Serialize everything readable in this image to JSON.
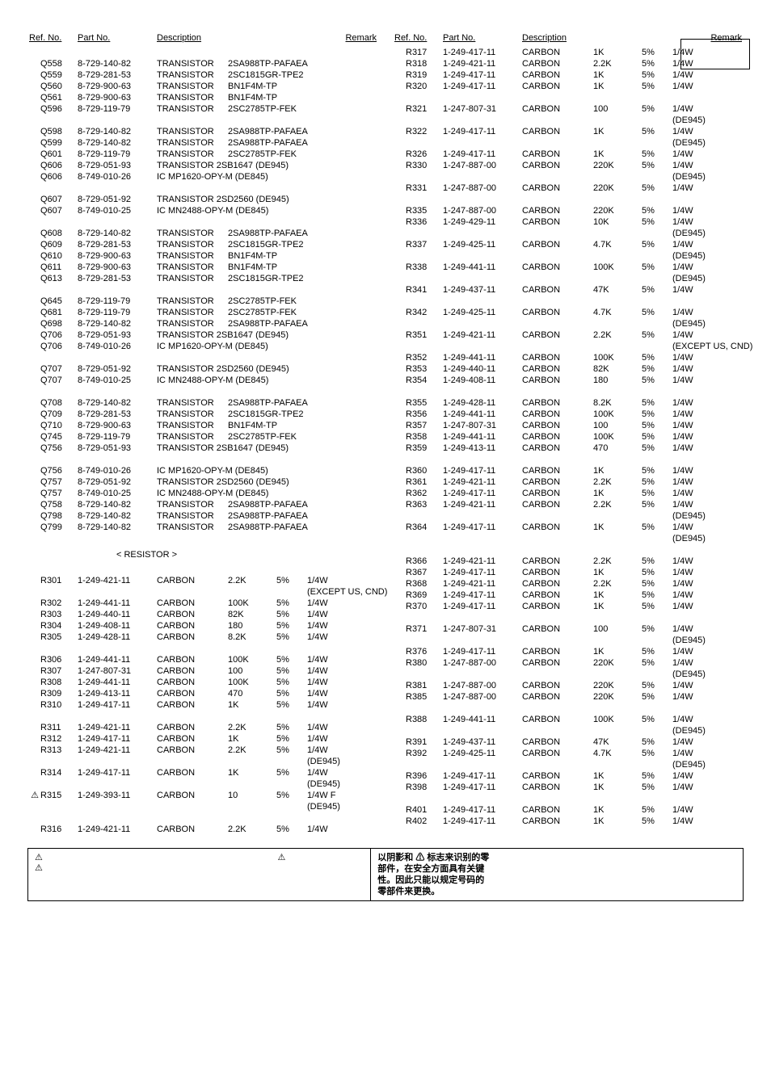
{
  "headers": {
    "ref": "Ref. No.",
    "part": "Part No.",
    "desc": "Description",
    "remark": "Remark"
  },
  "leftCol": [
    {
      "type": "head"
    },
    {
      "type": "spacer"
    },
    {
      "ref": "Q558",
      "part": "8-729-140-82",
      "desc": "TRANSISTOR",
      "d2": "2SA988TP-PAFAEA"
    },
    {
      "ref": "Q559",
      "part": "8-729-281-53",
      "desc": "TRANSISTOR",
      "d2": "2SC1815GR-TPE2"
    },
    {
      "ref": "Q560",
      "part": "8-729-900-63",
      "desc": "TRANSISTOR",
      "d2": "BN1F4M-TP"
    },
    {
      "ref": "Q561",
      "part": "8-729-900-63",
      "desc": "TRANSISTOR",
      "d2": "BN1F4M-TP"
    },
    {
      "ref": "Q596",
      "part": "8-729-119-79",
      "desc": "TRANSISTOR",
      "d2": "2SC2785TP-FEK"
    },
    {
      "type": "spacer"
    },
    {
      "ref": "Q598",
      "part": "8-729-140-82",
      "desc": "TRANSISTOR",
      "d2": "2SA988TP-PAFAEA"
    },
    {
      "ref": "Q599",
      "part": "8-729-140-82",
      "desc": "TRANSISTOR",
      "d2": "2SA988TP-PAFAEA"
    },
    {
      "ref": "Q601",
      "part": "8-729-119-79",
      "desc": "TRANSISTOR",
      "d2": "2SC2785TP-FEK"
    },
    {
      "ref": "Q606",
      "part": "8-729-051-93",
      "desc": "TRANSISTOR 2SB1647 (DE945)"
    },
    {
      "ref": "Q606",
      "part": "8-749-010-26",
      "desc": "IC MP1620-OPY-M (DE845)"
    },
    {
      "type": "spacer"
    },
    {
      "ref": "Q607",
      "part": "8-729-051-92",
      "desc": "TRANSISTOR 2SD2560 (DE945)"
    },
    {
      "ref": "Q607",
      "part": "8-749-010-25",
      "desc": "IC MN2488-OPY-M (DE845)"
    },
    {
      "type": "spacer"
    },
    {
      "ref": "Q608",
      "part": "8-729-140-82",
      "desc": "TRANSISTOR",
      "d2": "2SA988TP-PAFAEA"
    },
    {
      "ref": "Q609",
      "part": "8-729-281-53",
      "desc": "TRANSISTOR",
      "d2": "2SC1815GR-TPE2"
    },
    {
      "ref": "Q610",
      "part": "8-729-900-63",
      "desc": "TRANSISTOR",
      "d2": "BN1F4M-TP"
    },
    {
      "ref": "Q611",
      "part": "8-729-900-63",
      "desc": "TRANSISTOR",
      "d2": "BN1F4M-TP"
    },
    {
      "ref": "Q613",
      "part": "8-729-281-53",
      "desc": "TRANSISTOR",
      "d2": "2SC1815GR-TPE2"
    },
    {
      "type": "spacer"
    },
    {
      "ref": "Q645",
      "part": "8-729-119-79",
      "desc": "TRANSISTOR",
      "d2": "2SC2785TP-FEK"
    },
    {
      "ref": "Q681",
      "part": "8-729-119-79",
      "desc": "TRANSISTOR",
      "d2": "2SC2785TP-FEK"
    },
    {
      "ref": "Q698",
      "part": "8-729-140-82",
      "desc": "TRANSISTOR",
      "d2": "2SA988TP-PAFAEA"
    },
    {
      "ref": "Q706",
      "part": "8-729-051-93",
      "desc": "TRANSISTOR 2SB1647 (DE945)"
    },
    {
      "ref": "Q706",
      "part": "8-749-010-26",
      "desc": "IC MP1620-OPY-M (DE845)"
    },
    {
      "type": "spacer"
    },
    {
      "ref": "Q707",
      "part": "8-729-051-92",
      "desc": "TRANSISTOR 2SD2560 (DE945)"
    },
    {
      "ref": "Q707",
      "part": "8-749-010-25",
      "desc": "IC MN2488-OPY-M (DE845)"
    },
    {
      "type": "spacer"
    },
    {
      "ref": "Q708",
      "part": "8-729-140-82",
      "desc": "TRANSISTOR",
      "d2": "2SA988TP-PAFAEA"
    },
    {
      "ref": "Q709",
      "part": "8-729-281-53",
      "desc": "TRANSISTOR",
      "d2": "2SC1815GR-TPE2"
    },
    {
      "ref": "Q710",
      "part": "8-729-900-63",
      "desc": "TRANSISTOR",
      "d2": "BN1F4M-TP"
    },
    {
      "ref": "Q745",
      "part": "8-729-119-79",
      "desc": "TRANSISTOR",
      "d2": "2SC2785TP-FEK"
    },
    {
      "ref": "Q756",
      "part": "8-729-051-93",
      "desc": "TRANSISTOR 2SB1647 (DE945)"
    },
    {
      "type": "spacer"
    },
    {
      "ref": "Q756",
      "part": "8-749-010-26",
      "desc": "IC MP1620-OPY-M (DE845)"
    },
    {
      "ref": "Q757",
      "part": "8-729-051-92",
      "desc": "TRANSISTOR 2SD2560 (DE945)"
    },
    {
      "ref": "Q757",
      "part": "8-749-010-25",
      "desc": "IC MN2488-OPY-M (DE845)"
    },
    {
      "ref": "Q758",
      "part": "8-729-140-82",
      "desc": "TRANSISTOR",
      "d2": "2SA988TP-PAFAEA"
    },
    {
      "ref": "Q798",
      "part": "8-729-140-82",
      "desc": "TRANSISTOR",
      "d2": "2SA988TP-PAFAEA"
    },
    {
      "ref": "Q799",
      "part": "8-729-140-82",
      "desc": "TRANSISTOR",
      "d2": "2SA988TP-PAFAEA"
    },
    {
      "type": "spacer"
    },
    {
      "type": "section",
      "label": "< RESISTOR >"
    },
    {
      "type": "spacer"
    },
    {
      "ref": "R301",
      "part": "1-249-421-11",
      "desc": "CARBON",
      "d2": "2.2K",
      "d3": "5%",
      "rem": "1/4W"
    },
    {
      "rem": "(EXCEPT US, CND)"
    },
    {
      "ref": "R302",
      "part": "1-249-441-11",
      "desc": "CARBON",
      "d2": "100K",
      "d3": "5%",
      "rem": "1/4W"
    },
    {
      "ref": "R303",
      "part": "1-249-440-11",
      "desc": "CARBON",
      "d2": "82K",
      "d3": "5%",
      "rem": "1/4W"
    },
    {
      "ref": "R304",
      "part": "1-249-408-11",
      "desc": "CARBON",
      "d2": "180",
      "d3": "5%",
      "rem": "1/4W"
    },
    {
      "ref": "R305",
      "part": "1-249-428-11",
      "desc": "CARBON",
      "d2": "8.2K",
      "d3": "5%",
      "rem": "1/4W"
    },
    {
      "type": "spacer"
    },
    {
      "ref": "R306",
      "part": "1-249-441-11",
      "desc": "CARBON",
      "d2": "100K",
      "d3": "5%",
      "rem": "1/4W"
    },
    {
      "ref": "R307",
      "part": "1-247-807-31",
      "desc": "CARBON",
      "d2": "100",
      "d3": "5%",
      "rem": "1/4W"
    },
    {
      "ref": "R308",
      "part": "1-249-441-11",
      "desc": "CARBON",
      "d2": "100K",
      "d3": "5%",
      "rem": "1/4W"
    },
    {
      "ref": "R309",
      "part": "1-249-413-11",
      "desc": "CARBON",
      "d2": "470",
      "d3": "5%",
      "rem": "1/4W"
    },
    {
      "ref": "R310",
      "part": "1-249-417-11",
      "desc": "CARBON",
      "d2": "1K",
      "d3": "5%",
      "rem": "1/4W"
    },
    {
      "type": "spacer"
    },
    {
      "ref": "R311",
      "part": "1-249-421-11",
      "desc": "CARBON",
      "d2": "2.2K",
      "d3": "5%",
      "rem": "1/4W"
    },
    {
      "ref": "R312",
      "part": "1-249-417-11",
      "desc": "CARBON",
      "d2": "1K",
      "d3": "5%",
      "rem": "1/4W"
    },
    {
      "ref": "R313",
      "part": "1-249-421-11",
      "desc": "CARBON",
      "d2": "2.2K",
      "d3": "5%",
      "rem": "1/4W"
    },
    {
      "rem": "(DE945)"
    },
    {
      "ref": "R314",
      "part": "1-249-417-11",
      "desc": "CARBON",
      "d2": "1K",
      "d3": "5%",
      "rem": "1/4W"
    },
    {
      "rem": "(DE945)"
    },
    {
      "ref": "R315",
      "mark": "warn",
      "part": "1-249-393-11",
      "desc": "CARBON",
      "d2": "10",
      "d3": "5%",
      "rem": "1/4W  F"
    },
    {
      "rem": "(DE945)"
    },
    {
      "type": "spacer"
    },
    {
      "ref": "R316",
      "part": "1-249-421-11",
      "desc": "CARBON",
      "d2": "2.2K",
      "d3": "5%",
      "rem": "1/4W"
    }
  ],
  "rightCol": [
    {
      "type": "head"
    },
    {
      "ref": "R317",
      "part": "1-249-417-11",
      "desc": "CARBON",
      "d2": "1K",
      "d3": "5%",
      "rem": "1/4W"
    },
    {
      "ref": "R318",
      "part": "1-249-421-11",
      "desc": "CARBON",
      "d2": "2.2K",
      "d3": "5%",
      "rem": "1/4W"
    },
    {
      "ref": "R319",
      "part": "1-249-417-11",
      "desc": "CARBON",
      "d2": "1K",
      "d3": "5%",
      "rem": "1/4W"
    },
    {
      "ref": "R320",
      "part": "1-249-417-11",
      "desc": "CARBON",
      "d2": "1K",
      "d3": "5%",
      "rem": "1/4W"
    },
    {
      "type": "spacer"
    },
    {
      "ref": "R321",
      "part": "1-247-807-31",
      "desc": "CARBON",
      "d2": "100",
      "d3": "5%",
      "rem": "1/4W"
    },
    {
      "rem": "(DE945)"
    },
    {
      "ref": "R322",
      "part": "1-249-417-11",
      "desc": "CARBON",
      "d2": "1K",
      "d3": "5%",
      "rem": "1/4W"
    },
    {
      "rem": "(DE945)"
    },
    {
      "ref": "R326",
      "part": "1-249-417-11",
      "desc": "CARBON",
      "d2": "1K",
      "d3": "5%",
      "rem": "1/4W"
    },
    {
      "ref": "R330",
      "part": "1-247-887-00",
      "desc": "CARBON",
      "d2": "220K",
      "d3": "5%",
      "rem": "1/4W"
    },
    {
      "rem": "(DE945)"
    },
    {
      "ref": "R331",
      "part": "1-247-887-00",
      "desc": "CARBON",
      "d2": "220K",
      "d3": "5%",
      "rem": "1/4W"
    },
    {
      "type": "spacer"
    },
    {
      "ref": "R335",
      "part": "1-247-887-00",
      "desc": "CARBON",
      "d2": "220K",
      "d3": "5%",
      "rem": "1/4W"
    },
    {
      "ref": "R336",
      "part": "1-249-429-11",
      "desc": "CARBON",
      "d2": "10K",
      "d3": "5%",
      "rem": "1/4W"
    },
    {
      "rem": "(DE945)"
    },
    {
      "ref": "R337",
      "part": "1-249-425-11",
      "desc": "CARBON",
      "d2": "4.7K",
      "d3": "5%",
      "rem": "1/4W"
    },
    {
      "rem": "(DE945)"
    },
    {
      "ref": "R338",
      "part": "1-249-441-11",
      "desc": "CARBON",
      "d2": "100K",
      "d3": "5%",
      "rem": "1/4W"
    },
    {
      "rem": "(DE945)"
    },
    {
      "ref": "R341",
      "part": "1-249-437-11",
      "desc": "CARBON",
      "d2": "47K",
      "d3": "5%",
      "rem": "1/4W"
    },
    {
      "type": "spacer"
    },
    {
      "ref": "R342",
      "part": "1-249-425-11",
      "desc": "CARBON",
      "d2": "4.7K",
      "d3": "5%",
      "rem": "1/4W"
    },
    {
      "rem": "(DE945)"
    },
    {
      "ref": "R351",
      "part": "1-249-421-11",
      "desc": "CARBON",
      "d2": "2.2K",
      "d3": "5%",
      "rem": "1/4W"
    },
    {
      "rem": "(EXCEPT US, CND)"
    },
    {
      "ref": "R352",
      "part": "1-249-441-11",
      "desc": "CARBON",
      "d2": "100K",
      "d3": "5%",
      "rem": "1/4W"
    },
    {
      "ref": "R353",
      "part": "1-249-440-11",
      "desc": "CARBON",
      "d2": "82K",
      "d3": "5%",
      "rem": "1/4W"
    },
    {
      "ref": "R354",
      "part": "1-249-408-11",
      "desc": "CARBON",
      "d2": "180",
      "d3": "5%",
      "rem": "1/4W"
    },
    {
      "type": "spacer"
    },
    {
      "ref": "R355",
      "part": "1-249-428-11",
      "desc": "CARBON",
      "d2": "8.2K",
      "d3": "5%",
      "rem": "1/4W"
    },
    {
      "ref": "R356",
      "part": "1-249-441-11",
      "desc": "CARBON",
      "d2": "100K",
      "d3": "5%",
      "rem": "1/4W"
    },
    {
      "ref": "R357",
      "part": "1-247-807-31",
      "desc": "CARBON",
      "d2": "100",
      "d3": "5%",
      "rem": "1/4W"
    },
    {
      "ref": "R358",
      "part": "1-249-441-11",
      "desc": "CARBON",
      "d2": "100K",
      "d3": "5%",
      "rem": "1/4W"
    },
    {
      "ref": "R359",
      "part": "1-249-413-11",
      "desc": "CARBON",
      "d2": "470",
      "d3": "5%",
      "rem": "1/4W"
    },
    {
      "type": "spacer"
    },
    {
      "ref": "R360",
      "part": "1-249-417-11",
      "desc": "CARBON",
      "d2": "1K",
      "d3": "5%",
      "rem": "1/4W"
    },
    {
      "ref": "R361",
      "part": "1-249-421-11",
      "desc": "CARBON",
      "d2": "2.2K",
      "d3": "5%",
      "rem": "1/4W"
    },
    {
      "ref": "R362",
      "part": "1-249-417-11",
      "desc": "CARBON",
      "d2": "1K",
      "d3": "5%",
      "rem": "1/4W"
    },
    {
      "ref": "R363",
      "part": "1-249-421-11",
      "desc": "CARBON",
      "d2": "2.2K",
      "d3": "5%",
      "rem": "1/4W"
    },
    {
      "rem": "(DE945)"
    },
    {
      "ref": "R364",
      "part": "1-249-417-11",
      "desc": "CARBON",
      "d2": "1K",
      "d3": "5%",
      "rem": "1/4W"
    },
    {
      "rem": "(DE945)"
    },
    {
      "type": "spacer"
    },
    {
      "ref": "R366",
      "part": "1-249-421-11",
      "desc": "CARBON",
      "d2": "2.2K",
      "d3": "5%",
      "rem": "1/4W"
    },
    {
      "ref": "R367",
      "part": "1-249-417-11",
      "desc": "CARBON",
      "d2": "1K",
      "d3": "5%",
      "rem": "1/4W"
    },
    {
      "ref": "R368",
      "part": "1-249-421-11",
      "desc": "CARBON",
      "d2": "2.2K",
      "d3": "5%",
      "rem": "1/4W"
    },
    {
      "ref": "R369",
      "part": "1-249-417-11",
      "desc": "CARBON",
      "d2": "1K",
      "d3": "5%",
      "rem": "1/4W"
    },
    {
      "ref": "R370",
      "part": "1-249-417-11",
      "desc": "CARBON",
      "d2": "1K",
      "d3": "5%",
      "rem": "1/4W"
    },
    {
      "type": "spacer"
    },
    {
      "ref": "R371",
      "part": "1-247-807-31",
      "desc": "CARBON",
      "d2": "100",
      "d3": "5%",
      "rem": "1/4W"
    },
    {
      "rem": "(DE945)"
    },
    {
      "ref": "R376",
      "part": "1-249-417-11",
      "desc": "CARBON",
      "d2": "1K",
      "d3": "5%",
      "rem": "1/4W"
    },
    {
      "ref": "R380",
      "part": "1-247-887-00",
      "desc": "CARBON",
      "d2": "220K",
      "d3": "5%",
      "rem": "1/4W"
    },
    {
      "rem": "(DE945)"
    },
    {
      "ref": "R381",
      "part": "1-247-887-00",
      "desc": "CARBON",
      "d2": "220K",
      "d3": "5%",
      "rem": "1/4W"
    },
    {
      "ref": "R385",
      "part": "1-247-887-00",
      "desc": "CARBON",
      "d2": "220K",
      "d3": "5%",
      "rem": "1/4W"
    },
    {
      "type": "spacer"
    },
    {
      "ref": "R388",
      "part": "1-249-441-11",
      "desc": "CARBON",
      "d2": "100K",
      "d3": "5%",
      "rem": "1/4W"
    },
    {
      "rem": "(DE945)"
    },
    {
      "ref": "R391",
      "part": "1-249-437-11",
      "desc": "CARBON",
      "d2": "47K",
      "d3": "5%",
      "rem": "1/4W"
    },
    {
      "ref": "R392",
      "part": "1-249-425-11",
      "desc": "CARBON",
      "d2": "4.7K",
      "d3": "5%",
      "rem": "1/4W"
    },
    {
      "rem": "(DE945)"
    },
    {
      "ref": "R396",
      "part": "1-249-417-11",
      "desc": "CARBON",
      "d2": "1K",
      "d3": "5%",
      "rem": "1/4W"
    },
    {
      "ref": "R398",
      "part": "1-249-417-11",
      "desc": "CARBON",
      "d2": "1K",
      "d3": "5%",
      "rem": "1/4W"
    },
    {
      "type": "spacer"
    },
    {
      "ref": "R401",
      "part": "1-249-417-11",
      "desc": "CARBON",
      "d2": "1K",
      "d3": "5%",
      "rem": "1/4W"
    },
    {
      "ref": "R402",
      "part": "1-249-417-11",
      "desc": "CARBON",
      "d2": "1K",
      "d3": "5%",
      "rem": "1/4W"
    }
  ],
  "footer": {
    "cn_line1": "以阴影和 ⚠ 标志来识别的零",
    "cn_line2": "部件，在安全方面具有关键",
    "cn_line3": "性。因此只能以规定号码的",
    "cn_line4": "零部件来更换。"
  }
}
